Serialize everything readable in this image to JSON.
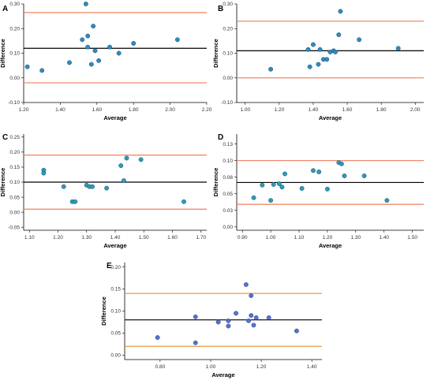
{
  "chart_data": [
    {
      "type": "scatter",
      "panel": "A",
      "xlabel": "Average",
      "ylabel": "Difference",
      "xlim": [
        1.2,
        2.2
      ],
      "ylim": [
        -0.1,
        0.3
      ],
      "xticks": [
        "1.20",
        "1.40",
        "1.60",
        "1.80",
        "2.00",
        "2.20"
      ],
      "yticks": [
        "-0.10",
        "0.00",
        "0.10",
        "0.20",
        "0.30"
      ],
      "mean_line": 0.12,
      "upper_limit": 0.265,
      "lower_limit": -0.02,
      "points": [
        [
          1.22,
          0.045
        ],
        [
          1.3,
          0.03
        ],
        [
          1.45,
          0.062
        ],
        [
          1.52,
          0.155
        ],
        [
          1.54,
          0.3
        ],
        [
          1.55,
          0.17
        ],
        [
          1.55,
          0.125
        ],
        [
          1.57,
          0.055
        ],
        [
          1.58,
          0.21
        ],
        [
          1.59,
          0.11
        ],
        [
          1.61,
          0.07
        ],
        [
          1.67,
          0.125
        ],
        [
          1.72,
          0.1
        ],
        [
          1.8,
          0.14
        ],
        [
          2.04,
          0.155
        ]
      ],
      "colors": {
        "point": "#2e8bc0",
        "mean": "#000000",
        "limit": "#f08a6c"
      }
    },
    {
      "type": "scatter",
      "panel": "B",
      "xlabel": "Average",
      "ylabel": "Difference",
      "xlim": [
        0.95,
        2.05
      ],
      "ylim": [
        -0.1,
        0.3
      ],
      "xticks": [
        "1.00",
        "1.20",
        "1.40",
        "1.60",
        "1.80",
        "2.00"
      ],
      "yticks": [
        "-0.10",
        "0.00",
        "0.10",
        "0.20",
        "0.30"
      ],
      "mean_line": 0.11,
      "upper_limit": 0.23,
      "lower_limit": 0.0,
      "points": [
        [
          1.15,
          0.035
        ],
        [
          1.37,
          0.115
        ],
        [
          1.38,
          0.045
        ],
        [
          1.4,
          0.135
        ],
        [
          1.43,
          0.055
        ],
        [
          1.44,
          0.115
        ],
        [
          1.46,
          0.075
        ],
        [
          1.48,
          0.075
        ],
        [
          1.5,
          0.105
        ],
        [
          1.52,
          0.11
        ],
        [
          1.53,
          0.105
        ],
        [
          1.55,
          0.175
        ],
        [
          1.56,
          0.27
        ],
        [
          1.67,
          0.155
        ],
        [
          1.9,
          0.12
        ]
      ],
      "colors": {
        "point": "#2e8bc0",
        "mean": "#000000",
        "limit": "#f08a6c"
      }
    },
    {
      "type": "scatter",
      "panel": "C",
      "xlabel": "Average",
      "ylabel": "Difference",
      "xlim": [
        1.08,
        1.72
      ],
      "ylim": [
        -0.06,
        0.26
      ],
      "xticks": [
        "1.10",
        "1.20",
        "1.30",
        "1.40",
        "1.50",
        "1.60",
        "1.70"
      ],
      "yticks": [
        "-0.05",
        "0.00",
        "0.05",
        "0.10",
        "0.15",
        "0.20",
        "0.25"
      ],
      "mean_line": 0.1,
      "upper_limit": 0.19,
      "lower_limit": 0.01,
      "points": [
        [
          1.15,
          0.14
        ],
        [
          1.15,
          0.13
        ],
        [
          1.22,
          0.085
        ],
        [
          1.25,
          0.035
        ],
        [
          1.26,
          0.035
        ],
        [
          1.3,
          0.09
        ],
        [
          1.31,
          0.085
        ],
        [
          1.32,
          0.085
        ],
        [
          1.37,
          0.08
        ],
        [
          1.42,
          0.155
        ],
        [
          1.43,
          0.105
        ],
        [
          1.44,
          0.18
        ],
        [
          1.49,
          0.175
        ],
        [
          1.64,
          0.035
        ]
      ],
      "colors": {
        "point": "#2e9bb3",
        "mean": "#000000",
        "limit": "#f08a6c"
      }
    },
    {
      "type": "scatter",
      "panel": "D",
      "xlabel": "Average",
      "ylabel": "Difference",
      "xlim": [
        0.88,
        1.54
      ],
      "ylim": [
        -0.005,
        0.14
      ],
      "xticks": [
        "0.90",
        "1.00",
        "1.10",
        "1.20",
        "1.30",
        "1.40",
        "1.50"
      ],
      "yticks": [
        "0.00",
        "0.03",
        "0.05",
        "0.08",
        "0.10",
        "0.13"
      ],
      "yticks_at": [
        0.0,
        0.025,
        0.05,
        0.075,
        0.1,
        0.125
      ],
      "mean_line": 0.067,
      "upper_limit": 0.1,
      "lower_limit": 0.034,
      "points": [
        [
          0.94,
          0.044
        ],
        [
          0.97,
          0.063
        ],
        [
          1.0,
          0.04
        ],
        [
          1.01,
          0.064
        ],
        [
          1.03,
          0.065
        ],
        [
          1.04,
          0.06
        ],
        [
          1.05,
          0.08
        ],
        [
          1.11,
          0.058
        ],
        [
          1.15,
          0.085
        ],
        [
          1.17,
          0.083
        ],
        [
          1.2,
          0.057
        ],
        [
          1.24,
          0.097
        ],
        [
          1.25,
          0.095
        ],
        [
          1.26,
          0.077
        ],
        [
          1.33,
          0.077
        ],
        [
          1.41,
          0.04
        ]
      ],
      "colors": {
        "point": "#2e9bb3",
        "mean": "#000000",
        "limit": "#f08a6c"
      }
    },
    {
      "type": "scatter",
      "panel": "E",
      "xlabel": "Average",
      "ylabel": "Difference",
      "xlim": [
        0.66,
        1.44
      ],
      "ylim": [
        -0.01,
        0.21
      ],
      "xticks": [
        "0.80",
        "1.00",
        "1.20",
        "1.40"
      ],
      "yticks": [
        "0.00",
        "0.05",
        "0.10",
        "0.15",
        "0.20"
      ],
      "mean_line": 0.08,
      "upper_limit": 0.14,
      "lower_limit": 0.02,
      "points": [
        [
          0.79,
          0.04
        ],
        [
          0.94,
          0.028
        ],
        [
          0.94,
          0.087
        ],
        [
          1.03,
          0.075
        ],
        [
          1.07,
          0.078
        ],
        [
          1.07,
          0.066
        ],
        [
          1.1,
          0.095
        ],
        [
          1.14,
          0.16
        ],
        [
          1.15,
          0.078
        ],
        [
          1.16,
          0.09
        ],
        [
          1.16,
          0.135
        ],
        [
          1.17,
          0.068
        ],
        [
          1.18,
          0.085
        ],
        [
          1.23,
          0.085
        ],
        [
          1.34,
          0.055
        ]
      ],
      "colors": {
        "point": "#5b6ed6",
        "mean": "#000000",
        "limit": "#e49a40"
      }
    }
  ]
}
